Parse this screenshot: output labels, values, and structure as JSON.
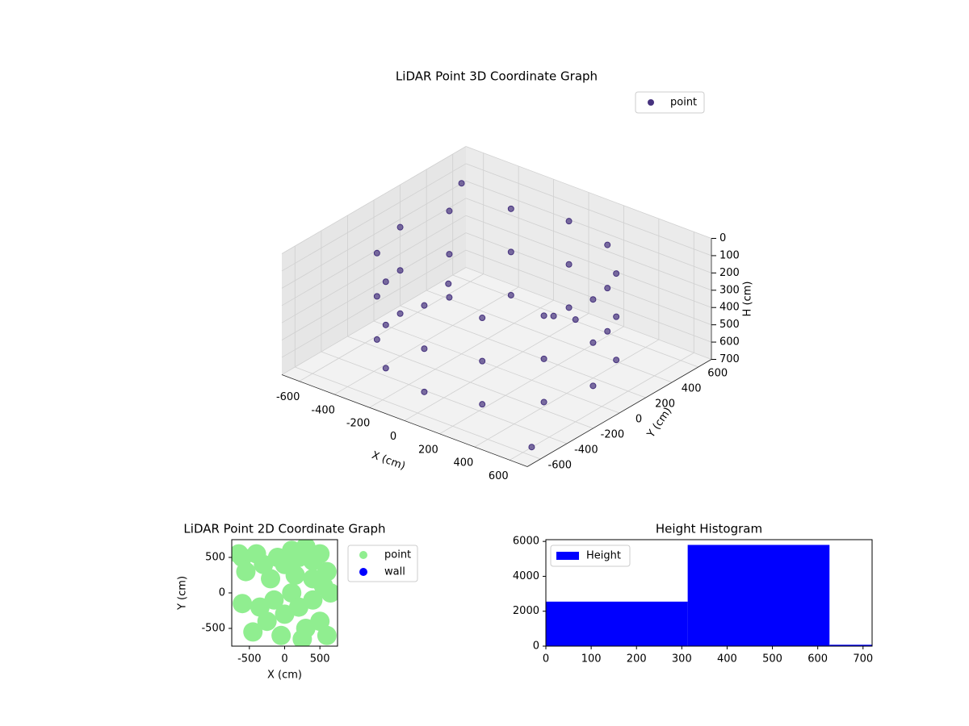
{
  "chart_data": [
    {
      "type": "scatter3d",
      "title": "LiDAR Point 3D Coordinate Graph",
      "xlabel": "X (cm)",
      "ylabel": "Y (cm)",
      "zlabel": "H (cm)",
      "xlim": [
        -700,
        700
      ],
      "xticks": [
        -600,
        -400,
        -200,
        0,
        200,
        400,
        600
      ],
      "ylim": [
        -700,
        700
      ],
      "yticks": [
        -600,
        -400,
        -200,
        0,
        200,
        400,
        600
      ],
      "zlim": [
        700,
        0
      ],
      "zticks": [
        0,
        100,
        200,
        300,
        400,
        500,
        600,
        700
      ],
      "grid": true,
      "legend": "upper right",
      "series": [
        {
          "name": "point",
          "color": "#46327e",
          "x": [
            550,
            550,
            550,
            476,
            476,
            476,
            275,
            275,
            275,
            0,
            0,
            0,
            -275,
            -275,
            -275,
            -476,
            -476,
            -476,
            -550,
            -550,
            -550,
            -476,
            -476,
            -476,
            -275,
            -275,
            -275,
            0,
            0,
            0,
            275,
            275,
            275,
            476,
            476,
            476,
            -650,
            650,
            300,
            -200,
            100
          ],
          "y": [
            0,
            0,
            0,
            275,
            275,
            275,
            476,
            476,
            476,
            550,
            550,
            550,
            476,
            476,
            476,
            275,
            275,
            275,
            0,
            0,
            0,
            -275,
            -275,
            -275,
            -476,
            -476,
            -476,
            -550,
            -550,
            -550,
            -476,
            -476,
            -476,
            -275,
            -275,
            -275,
            600,
            -600,
            200,
            -100,
            300
          ],
          "z": [
            100,
            350,
            600,
            100,
            350,
            600,
            100,
            350,
            600,
            100,
            350,
            600,
            100,
            350,
            600,
            100,
            350,
            600,
            100,
            350,
            600,
            100,
            350,
            600,
            100,
            350,
            600,
            100,
            350,
            600,
            100,
            350,
            600,
            100,
            350,
            600,
            150,
            650,
            400,
            250,
            500
          ]
        }
      ]
    },
    {
      "type": "scatter",
      "title": "LiDAR Point 2D Coordinate Graph",
      "xlabel": "X (cm)",
      "ylabel": "Y (cm)",
      "xlim": [
        -750,
        750
      ],
      "xticks": [
        -500,
        0,
        500
      ],
      "ylim": [
        -750,
        750
      ],
      "yticks": [
        -500,
        0,
        500
      ],
      "legend": "outside right",
      "series": [
        {
          "name": "point",
          "color": "#90ee90",
          "x": [
            -600,
            -550,
            -400,
            -300,
            -200,
            -100,
            0,
            100,
            200,
            300,
            400,
            500,
            600,
            -350,
            -250,
            -450,
            -150,
            0,
            100,
            200,
            300,
            400,
            500,
            600,
            650,
            -600,
            -650,
            150,
            400,
            -50,
            250,
            550
          ],
          "y": [
            500,
            300,
            550,
            400,
            200,
            500,
            400,
            600,
            500,
            650,
            450,
            550,
            300,
            -200,
            -400,
            -550,
            -100,
            -300,
            0,
            -200,
            -500,
            -100,
            -400,
            -600,
            0,
            -150,
            550,
            250,
            200,
            -600,
            -650,
            100
          ]
        },
        {
          "name": "wall",
          "color": "#0000ff",
          "x": [],
          "y": []
        }
      ]
    },
    {
      "type": "histogram",
      "title": "Height Histogram",
      "legend": "upper left",
      "series": [
        {
          "name": "Height",
          "color": "#0000ff",
          "bins": [
            0,
            313,
            626,
            939
          ],
          "counts": [
            2550,
            5800,
            80
          ]
        }
      ],
      "xlim": [
        0,
        720
      ],
      "xticks": [
        0,
        100,
        200,
        300,
        400,
        500,
        600,
        700
      ],
      "ylim": [
        0,
        6100
      ],
      "yticks": [
        0,
        2000,
        4000,
        6000
      ]
    }
  ]
}
